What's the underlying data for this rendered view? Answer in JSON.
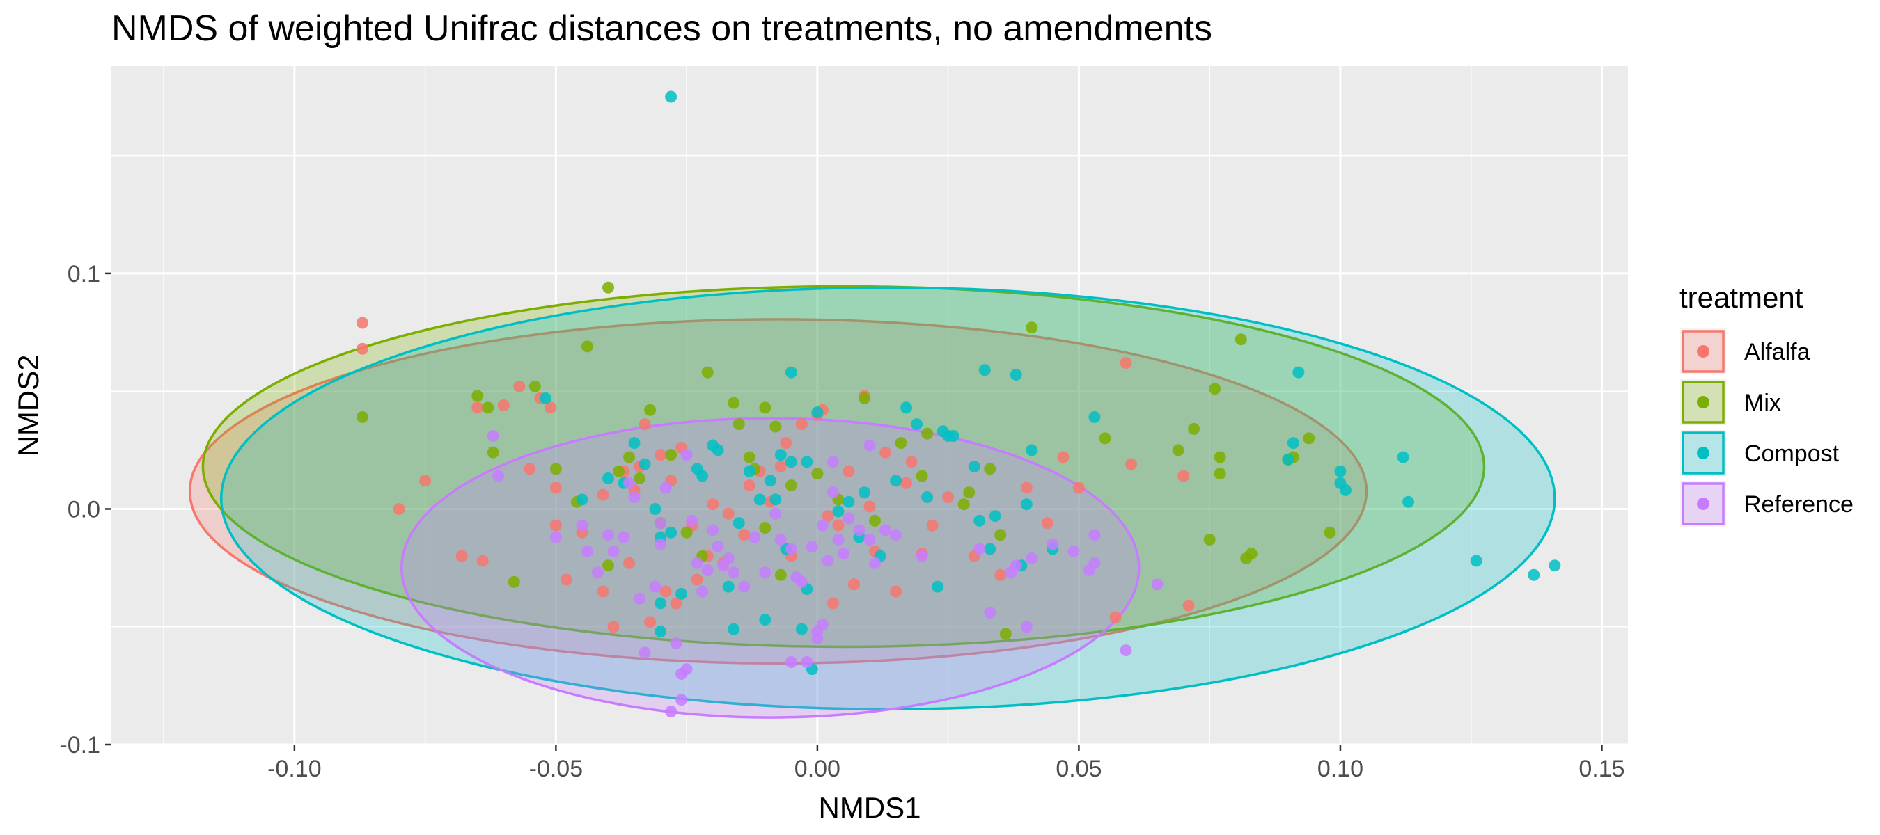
{
  "chart_data": {
    "type": "scatter",
    "title": "NMDS of weighted Unifrac distances on treatments, no amendments",
    "xlabel": "NMDS1",
    "ylabel": "NMDS2",
    "xlim": [
      -0.135,
      0.155
    ],
    "ylim": [
      -0.1,
      0.188
    ],
    "x_ticks": [
      -0.1,
      -0.05,
      0.0,
      0.05,
      0.1,
      0.15
    ],
    "x_tick_labels": [
      "-0.10",
      "-0.05",
      "0.00",
      "0.05",
      "0.10",
      "0.15"
    ],
    "y_ticks": [
      -0.1,
      0.0,
      0.1
    ],
    "y_tick_labels": [
      "-0.1",
      "0.0",
      "0.1"
    ],
    "grid": true,
    "legend": {
      "title": "treatment",
      "position": "right"
    },
    "series": [
      {
        "name": "Alfalfa",
        "color": "#F8766D",
        "ellipse": {
          "cx": -0.0075,
          "cy": 0.0075,
          "rx": 0.1125,
          "ry": 0.073
        },
        "points": [
          [
            -0.087,
            0.079
          ],
          [
            -0.087,
            0.068
          ],
          [
            -0.08,
            0
          ],
          [
            -0.075,
            0.012
          ],
          [
            -0.068,
            -0.02
          ],
          [
            -0.064,
            -0.022
          ],
          [
            -0.065,
            0.043
          ],
          [
            -0.06,
            0.044
          ],
          [
            -0.057,
            0.052
          ],
          [
            -0.055,
            0.017
          ],
          [
            -0.053,
            0.047
          ],
          [
            -0.051,
            0.043
          ],
          [
            -0.05,
            0.009
          ],
          [
            -0.05,
            -0.007
          ],
          [
            -0.048,
            -0.03
          ],
          [
            -0.041,
            0.006
          ],
          [
            -0.041,
            -0.035
          ],
          [
            -0.039,
            -0.05
          ],
          [
            -0.037,
            0.016
          ],
          [
            -0.036,
            -0.023
          ],
          [
            -0.035,
            0.008
          ],
          [
            -0.034,
            0.018
          ],
          [
            -0.033,
            0.036
          ],
          [
            -0.032,
            -0.048
          ],
          [
            -0.03,
            0.023
          ],
          [
            -0.029,
            -0.035
          ],
          [
            -0.028,
            0.012
          ],
          [
            -0.026,
            0.026
          ],
          [
            -0.024,
            -0.007
          ],
          [
            -0.023,
            -0.03
          ],
          [
            -0.021,
            -0.02
          ],
          [
            -0.018,
            -0.023
          ],
          [
            -0.017,
            -0.002
          ],
          [
            -0.014,
            -0.011
          ],
          [
            -0.011,
            0.016
          ],
          [
            -0.009,
            0.003
          ],
          [
            -0.007,
            0.018
          ],
          [
            -0.005,
            -0.02
          ],
          [
            -0.003,
            0.036
          ],
          [
            0.0,
            0.04
          ],
          [
            0.001,
            0.042
          ],
          [
            0.002,
            -0.003
          ],
          [
            0.004,
            -0.007
          ],
          [
            0.006,
            0.016
          ],
          [
            0.007,
            -0.032
          ],
          [
            0.009,
            0.048
          ],
          [
            0.01,
            0.001
          ],
          [
            0.011,
            -0.018
          ],
          [
            0.013,
            0.024
          ],
          [
            0.015,
            -0.035
          ],
          [
            0.017,
            0.011
          ],
          [
            0.02,
            -0.019
          ],
          [
            0.022,
            -0.007
          ],
          [
            0.03,
            -0.02
          ],
          [
            0.04,
            0.009
          ],
          [
            0.044,
            -0.006
          ],
          [
            0.047,
            0.022
          ],
          [
            0.05,
            0.009
          ],
          [
            0.059,
            0.062
          ],
          [
            0.06,
            0.019
          ],
          [
            0.07,
            0.014
          ],
          [
            0.071,
            -0.041
          ],
          [
            -0.045,
            -0.01
          ],
          [
            -0.027,
            -0.04
          ],
          [
            -0.013,
            0.01
          ],
          [
            0.003,
            -0.04
          ],
          [
            0.018,
            0.02
          ],
          [
            0.035,
            -0.028
          ],
          [
            0.057,
            -0.046
          ],
          [
            -0.02,
            0.002
          ],
          [
            -0.006,
            0.028
          ],
          [
            0.025,
            0.005
          ]
        ]
      },
      {
        "name": "Mix",
        "color": "#7CAE00",
        "ellipse": {
          "cx": 0.005,
          "cy": 0.018,
          "rx": 0.1225,
          "ry": 0.0765
        },
        "points": [
          [
            -0.087,
            0.039
          ],
          [
            -0.065,
            0.048
          ],
          [
            -0.063,
            0.043
          ],
          [
            -0.062,
            0.024
          ],
          [
            -0.058,
            -0.031
          ],
          [
            -0.054,
            0.052
          ],
          [
            -0.05,
            0.017
          ],
          [
            -0.044,
            0.069
          ],
          [
            -0.04,
            0.094
          ],
          [
            -0.04,
            -0.024
          ],
          [
            -0.038,
            0.016
          ],
          [
            -0.036,
            0.022
          ],
          [
            -0.034,
            0.013
          ],
          [
            -0.032,
            0.042
          ],
          [
            -0.03,
            -0.006
          ],
          [
            -0.028,
            0.023
          ],
          [
            -0.025,
            -0.01
          ],
          [
            -0.021,
            0.058
          ],
          [
            -0.016,
            0.045
          ],
          [
            -0.015,
            0.036
          ],
          [
            -0.013,
            0.022
          ],
          [
            -0.012,
            0.017
          ],
          [
            -0.01,
            -0.008
          ],
          [
            -0.008,
            0.035
          ],
          [
            -0.007,
            -0.028
          ],
          [
            -0.005,
            0.01
          ],
          [
            0.0,
            0.015
          ],
          [
            0.004,
            0.004
          ],
          [
            0.009,
            0.047
          ],
          [
            0.016,
            0.028
          ],
          [
            0.021,
            0.032
          ],
          [
            0.028,
            0.002
          ],
          [
            0.029,
            0.007
          ],
          [
            0.033,
            0.017
          ],
          [
            0.035,
            -0.011
          ],
          [
            0.036,
            -0.053
          ],
          [
            0.041,
            0.077
          ],
          [
            0.069,
            0.025
          ],
          [
            0.072,
            0.034
          ],
          [
            0.075,
            -0.013
          ],
          [
            0.076,
            0.051
          ],
          [
            0.077,
            0.015
          ],
          [
            0.077,
            0.022
          ],
          [
            0.081,
            0.072
          ],
          [
            0.082,
            -0.021
          ],
          [
            0.083,
            -0.019
          ],
          [
            0.09,
            0.021
          ],
          [
            0.091,
            0.022
          ],
          [
            0.094,
            0.03
          ],
          [
            0.098,
            -0.01
          ],
          [
            -0.046,
            0.003
          ],
          [
            -0.022,
            -0.02
          ],
          [
            0.011,
            -0.005
          ],
          [
            0.055,
            0.03
          ],
          [
            -0.01,
            0.043
          ],
          [
            0.02,
            0.014
          ]
        ]
      },
      {
        "name": "Compost",
        "color": "#00BFC4",
        "ellipse": {
          "cx": 0.0135,
          "cy": 0.0045,
          "rx": 0.1275,
          "ry": 0.0895
        },
        "points": [
          [
            -0.028,
            0.175
          ],
          [
            -0.052,
            0.047
          ],
          [
            -0.045,
            0.004
          ],
          [
            -0.04,
            0.013
          ],
          [
            -0.037,
            0.011
          ],
          [
            -0.035,
            0.028
          ],
          [
            -0.033,
            0.019
          ],
          [
            -0.031,
            0.0
          ],
          [
            -0.03,
            -0.012
          ],
          [
            -0.03,
            -0.04
          ],
          [
            -0.03,
            -0.052
          ],
          [
            -0.028,
            -0.01
          ],
          [
            -0.026,
            -0.036
          ],
          [
            -0.023,
            0.017
          ],
          [
            -0.022,
            0.014
          ],
          [
            -0.02,
            0.027
          ],
          [
            -0.017,
            -0.033
          ],
          [
            -0.016,
            -0.051
          ],
          [
            -0.015,
            -0.006
          ],
          [
            -0.013,
            0.016
          ],
          [
            -0.011,
            0.004
          ],
          [
            -0.01,
            -0.047
          ],
          [
            -0.009,
            0.012
          ],
          [
            -0.007,
            0.023
          ],
          [
            -0.006,
            -0.017
          ],
          [
            -0.005,
            0.02
          ],
          [
            -0.005,
            0.058
          ],
          [
            -0.003,
            -0.051
          ],
          [
            -0.002,
            -0.034
          ],
          [
            -0.001,
            -0.068
          ],
          [
            0.0,
            0.041
          ],
          [
            0.004,
            -0.001
          ],
          [
            0.009,
            0.007
          ],
          [
            0.012,
            -0.02
          ],
          [
            0.015,
            0.012
          ],
          [
            0.017,
            0.043
          ],
          [
            0.021,
            0.005
          ],
          [
            0.023,
            -0.033
          ],
          [
            0.024,
            0.033
          ],
          [
            0.025,
            0.031
          ],
          [
            0.03,
            0.018
          ],
          [
            0.031,
            -0.005
          ],
          [
            0.032,
            0.059
          ],
          [
            0.033,
            -0.017
          ],
          [
            0.034,
            -0.003
          ],
          [
            0.038,
            0.057
          ],
          [
            0.039,
            -0.024
          ],
          [
            0.04,
            0.002
          ],
          [
            0.041,
            0.025
          ],
          [
            0.045,
            -0.017
          ],
          [
            0.053,
            0.039
          ],
          [
            0.09,
            0.021
          ],
          [
            0.091,
            0.028
          ],
          [
            0.092,
            0.058
          ],
          [
            0.1,
            0.016
          ],
          [
            0.1,
            0.011
          ],
          [
            0.101,
            0.008
          ],
          [
            0.112,
            0.022
          ],
          [
            0.113,
            0.003
          ],
          [
            0.126,
            -0.022
          ],
          [
            0.137,
            -0.028
          ],
          [
            0.141,
            -0.024
          ],
          [
            -0.019,
            0.025
          ],
          [
            -0.008,
            0.004
          ],
          [
            0.006,
            0.003
          ],
          [
            0.019,
            0.036
          ],
          [
            -0.002,
            0.02
          ],
          [
            0.026,
            0.031
          ],
          [
            0.008,
            -0.012
          ]
        ]
      },
      {
        "name": "Reference",
        "color": "#C77CFF",
        "ellipse": {
          "cx": -0.009,
          "cy": -0.025,
          "rx": 0.0705,
          "ry": 0.0635
        },
        "points": [
          [
            -0.062,
            0.031
          ],
          [
            -0.061,
            0.014
          ],
          [
            -0.05,
            -0.012
          ],
          [
            -0.045,
            -0.007
          ],
          [
            -0.042,
            -0.027
          ],
          [
            -0.04,
            -0.011
          ],
          [
            -0.039,
            -0.018
          ],
          [
            -0.037,
            -0.012
          ],
          [
            -0.036,
            0.011
          ],
          [
            -0.035,
            0.005
          ],
          [
            -0.034,
            -0.038
          ],
          [
            -0.033,
            -0.061
          ],
          [
            -0.031,
            -0.033
          ],
          [
            -0.03,
            -0.015
          ],
          [
            -0.029,
            0.009
          ],
          [
            -0.027,
            -0.057
          ],
          [
            -0.026,
            -0.07
          ],
          [
            -0.025,
            -0.068
          ],
          [
            -0.026,
            -0.081
          ],
          [
            -0.028,
            -0.086
          ],
          [
            -0.025,
            0.023
          ],
          [
            -0.024,
            -0.005
          ],
          [
            -0.023,
            -0.023
          ],
          [
            -0.022,
            -0.035
          ],
          [
            -0.021,
            -0.026
          ],
          [
            -0.02,
            -0.009
          ],
          [
            -0.019,
            -0.016
          ],
          [
            -0.017,
            -0.021
          ],
          [
            -0.016,
            -0.027
          ],
          [
            -0.014,
            -0.033
          ],
          [
            -0.012,
            -0.012
          ],
          [
            -0.01,
            -0.027
          ],
          [
            -0.008,
            -0.002
          ],
          [
            -0.007,
            -0.013
          ],
          [
            -0.005,
            -0.017
          ],
          [
            -0.004,
            -0.029
          ],
          [
            -0.003,
            -0.031
          ],
          [
            -0.002,
            -0.065
          ],
          [
            -0.001,
            -0.016
          ],
          [
            0.0,
            -0.055
          ],
          [
            0.001,
            -0.007
          ],
          [
            0.001,
            -0.049
          ],
          [
            0.002,
            -0.022
          ],
          [
            0.003,
            0.007
          ],
          [
            0.004,
            -0.013
          ],
          [
            0.005,
            -0.019
          ],
          [
            0.006,
            -0.004
          ],
          [
            0.008,
            -0.009
          ],
          [
            0.01,
            -0.013
          ],
          [
            0.011,
            -0.023
          ],
          [
            0.013,
            -0.009
          ],
          [
            0.015,
            -0.011
          ],
          [
            0.031,
            -0.017
          ],
          [
            0.033,
            -0.044
          ],
          [
            0.037,
            -0.027
          ],
          [
            0.038,
            -0.024
          ],
          [
            0.04,
            -0.05
          ],
          [
            0.041,
            -0.021
          ],
          [
            0.049,
            -0.018
          ],
          [
            0.053,
            -0.011
          ],
          [
            0.052,
            -0.026
          ],
          [
            0.053,
            -0.023
          ],
          [
            0.059,
            -0.06
          ],
          [
            0.065,
            -0.032
          ],
          [
            0.01,
            0.027
          ],
          [
            0.003,
            0.02
          ],
          [
            -0.018,
            -0.024
          ],
          [
            0.045,
            -0.015
          ],
          [
            -0.044,
            -0.018
          ],
          [
            0.02,
            -0.02
          ],
          [
            0.0,
            -0.052
          ],
          [
            -0.005,
            -0.065
          ],
          [
            -0.03,
            -0.006
          ]
        ]
      }
    ]
  }
}
